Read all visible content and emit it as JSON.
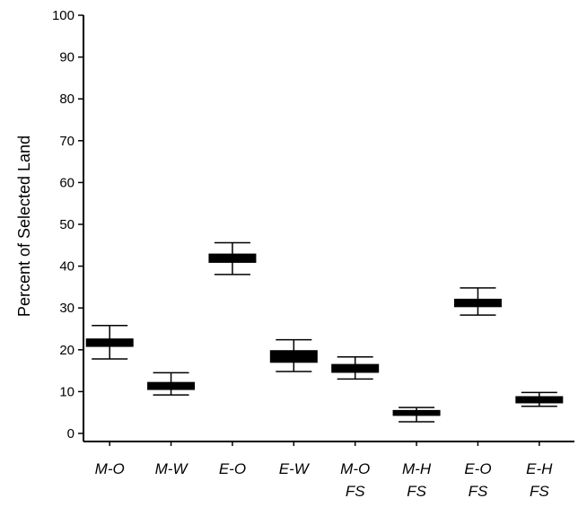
{
  "chart_data": {
    "type": "box",
    "ylabel": "Percent of Selected Land",
    "ylim": [
      0,
      100
    ],
    "yticks": [
      0,
      10,
      20,
      30,
      40,
      50,
      60,
      70,
      80,
      90,
      100
    ],
    "grid": false,
    "categories": [
      {
        "line1": "M-O",
        "line2": ""
      },
      {
        "line1": "M-W",
        "line2": ""
      },
      {
        "line1": "E-O",
        "line2": ""
      },
      {
        "line1": "E-W",
        "line2": ""
      },
      {
        "line1": "M-O",
        "line2": "FS"
      },
      {
        "line1": "M-H",
        "line2": "FS"
      },
      {
        "line1": "E-O",
        "line2": "FS"
      },
      {
        "line1": "E-H",
        "line2": "FS"
      }
    ],
    "boxes": [
      {
        "min": 17.8,
        "q1": 20.8,
        "median": 21.5,
        "q3": 22.6,
        "max": 25.8
      },
      {
        "min": 9.2,
        "q1": 10.5,
        "median": 11.2,
        "q3": 12.2,
        "max": 14.5
      },
      {
        "min": 38.0,
        "q1": 40.9,
        "median": 41.8,
        "q3": 42.9,
        "max": 45.6
      },
      {
        "min": 14.8,
        "q1": 17.0,
        "median": 18.5,
        "q3": 19.8,
        "max": 22.4
      },
      {
        "min": 13.0,
        "q1": 14.6,
        "median": 15.4,
        "q3": 16.5,
        "max": 18.3
      },
      {
        "min": 2.8,
        "q1": 4.3,
        "median": 4.8,
        "q3": 5.5,
        "max": 6.2
      },
      {
        "min": 28.3,
        "q1": 30.3,
        "median": 31.0,
        "q3": 32.1,
        "max": 34.8
      },
      {
        "min": 6.5,
        "q1": 7.3,
        "median": 8.0,
        "q3": 8.8,
        "max": 9.8
      }
    ],
    "colors": {
      "box": "#000000",
      "axis": "#000000",
      "background": "#ffffff"
    }
  }
}
